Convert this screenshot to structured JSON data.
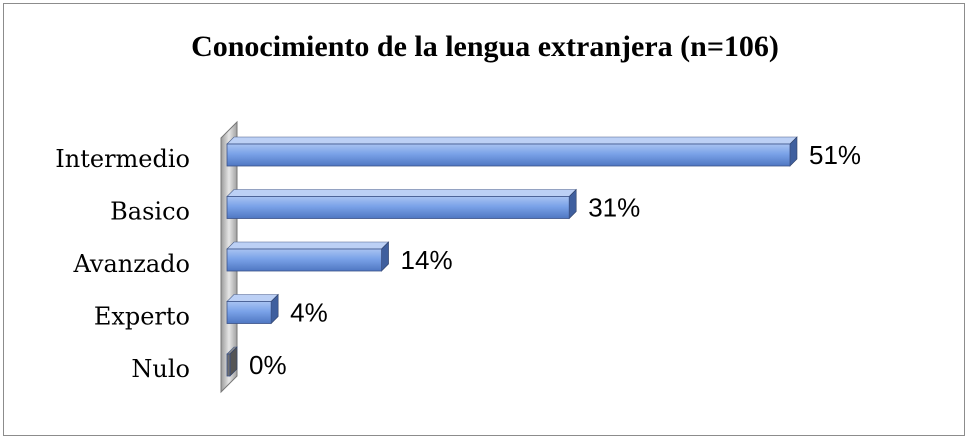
{
  "chart_data": {
    "type": "bar",
    "orientation": "horizontal",
    "title": "Conocimiento de la lengua extranjera (n=106)",
    "categories": [
      "Intermedio",
      "Basico",
      "Avanzado",
      "Experto",
      "Nulo"
    ],
    "values": [
      51,
      31,
      14,
      4,
      0
    ],
    "value_labels": [
      "51%",
      "31%",
      "14%",
      "4%",
      "0%"
    ],
    "xlim": [
      0,
      51
    ],
    "unit": "%",
    "grid": false,
    "legend": "none",
    "style": "3d",
    "bar_color": "#7aa2e8"
  }
}
